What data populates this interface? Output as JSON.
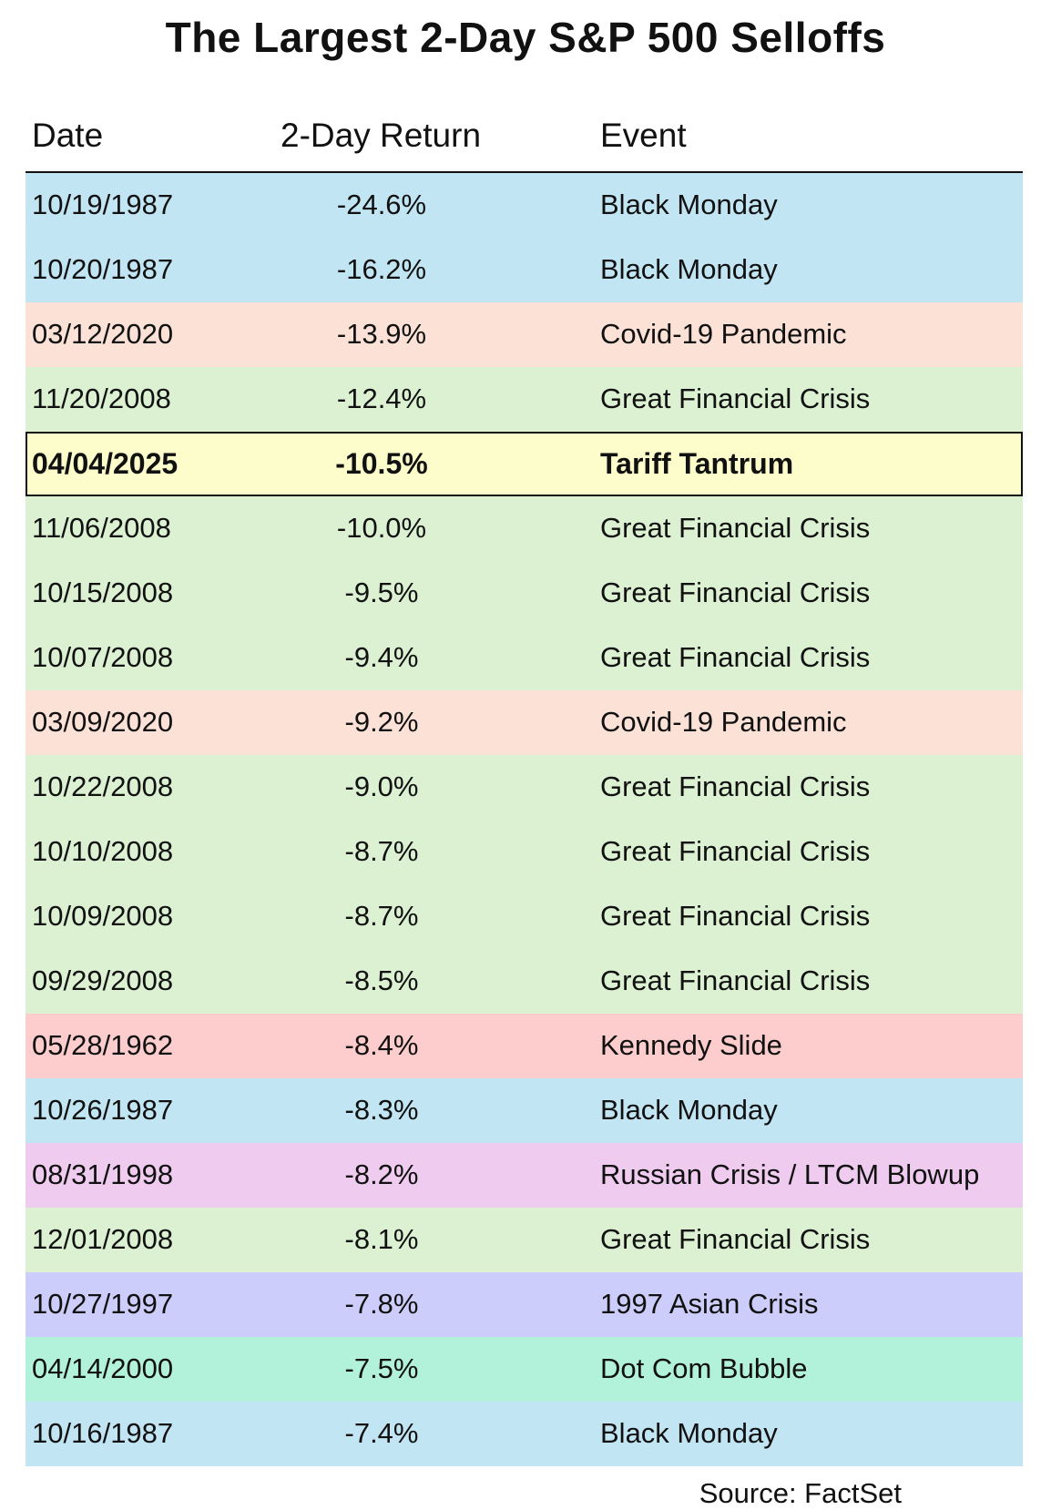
{
  "title": "The Largest 2-Day S&P 500 Selloffs",
  "source": "Source: FactSet",
  "colors": {
    "Black Monday": "#c2e5f3",
    "Covid-19 Pandemic": "#fbe1d6",
    "Great Financial Crisis": "#dbf1d2",
    "Tariff Tantrum": "#fdfdcc",
    "Kennedy Slide": "#fdcccc",
    "Russian Crisis / LTCM Blowup": "#efccef",
    "1997 Asian Crisis": "#cdcdfb",
    "Dot Com Bubble": "#b2f2db",
    "highlight_border": "#111111"
  },
  "chart_data": {
    "type": "table",
    "title": "The Largest 2-Day S&P 500 Selloffs",
    "columns": [
      "Date",
      "2-Day Return",
      "Event"
    ],
    "rows": [
      {
        "date": "10/19/1987",
        "ret": "-24.6%",
        "event": "Black Monday",
        "value": -24.6,
        "highlight": false
      },
      {
        "date": "10/20/1987",
        "ret": "-16.2%",
        "event": "Black Monday",
        "value": -16.2,
        "highlight": false
      },
      {
        "date": "03/12/2020",
        "ret": "-13.9%",
        "event": "Covid-19 Pandemic",
        "value": -13.9,
        "highlight": false
      },
      {
        "date": "11/20/2008",
        "ret": "-12.4%",
        "event": "Great Financial Crisis",
        "value": -12.4,
        "highlight": false
      },
      {
        "date": "04/04/2025",
        "ret": "-10.5%",
        "event": "Tariff Tantrum",
        "value": -10.5,
        "highlight": true
      },
      {
        "date": "11/06/2008",
        "ret": "-10.0%",
        "event": "Great Financial Crisis",
        "value": -10.0,
        "highlight": false
      },
      {
        "date": "10/15/2008",
        "ret": "-9.5%",
        "event": "Great Financial Crisis",
        "value": -9.5,
        "highlight": false
      },
      {
        "date": "10/07/2008",
        "ret": "-9.4%",
        "event": "Great Financial Crisis",
        "value": -9.4,
        "highlight": false
      },
      {
        "date": "03/09/2020",
        "ret": "-9.2%",
        "event": "Covid-19 Pandemic",
        "value": -9.2,
        "highlight": false
      },
      {
        "date": "10/22/2008",
        "ret": "-9.0%",
        "event": "Great Financial Crisis",
        "value": -9.0,
        "highlight": false
      },
      {
        "date": "10/10/2008",
        "ret": "-8.7%",
        "event": "Great Financial Crisis",
        "value": -8.7,
        "highlight": false
      },
      {
        "date": "10/09/2008",
        "ret": "-8.7%",
        "event": "Great Financial Crisis",
        "value": -8.7,
        "highlight": false
      },
      {
        "date": "09/29/2008",
        "ret": "-8.5%",
        "event": "Great Financial Crisis",
        "value": -8.5,
        "highlight": false
      },
      {
        "date": "05/28/1962",
        "ret": "-8.4%",
        "event": "Kennedy Slide",
        "value": -8.4,
        "highlight": false
      },
      {
        "date": "10/26/1987",
        "ret": "-8.3%",
        "event": "Black Monday",
        "value": -8.3,
        "highlight": false
      },
      {
        "date": "08/31/1998",
        "ret": "-8.2%",
        "event": "Russian Crisis / LTCM Blowup",
        "value": -8.2,
        "highlight": false
      },
      {
        "date": "12/01/2008",
        "ret": "-8.1%",
        "event": "Great Financial Crisis",
        "value": -8.1,
        "highlight": false
      },
      {
        "date": "10/27/1997",
        "ret": "-7.8%",
        "event": "1997 Asian Crisis",
        "value": -7.8,
        "highlight": false
      },
      {
        "date": "04/14/2000",
        "ret": "-7.5%",
        "event": "Dot Com Bubble",
        "value": -7.5,
        "highlight": false
      },
      {
        "date": "10/16/1987",
        "ret": "-7.4%",
        "event": "Black Monday",
        "value": -7.4,
        "highlight": false
      }
    ]
  }
}
